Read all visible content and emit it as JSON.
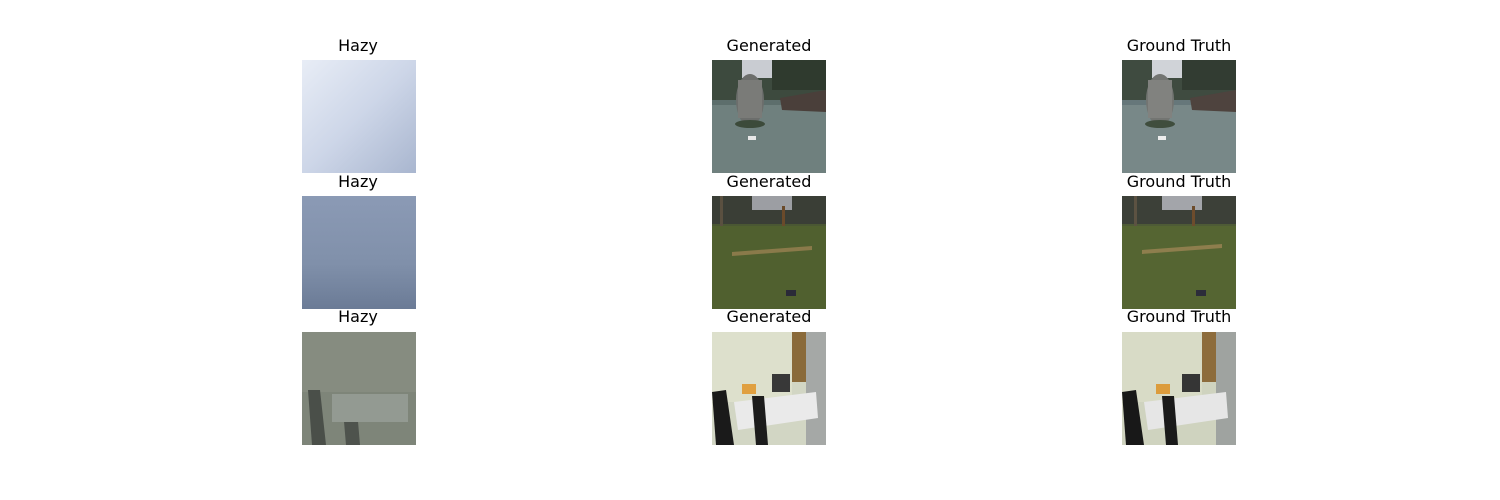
{
  "figure": {
    "rows": [
      {
        "hazy": {
          "title": "Hazy"
        },
        "generated": {
          "title": "Generated"
        },
        "ground_truth": {
          "title": "Ground Truth"
        }
      },
      {
        "hazy": {
          "title": "Hazy"
        },
        "generated": {
          "title": "Generated"
        },
        "ground_truth": {
          "title": "Ground Truth"
        }
      },
      {
        "hazy": {
          "title": "Hazy"
        },
        "generated": {
          "title": "Generated"
        },
        "ground_truth": {
          "title": "Ground Truth"
        }
      }
    ]
  }
}
